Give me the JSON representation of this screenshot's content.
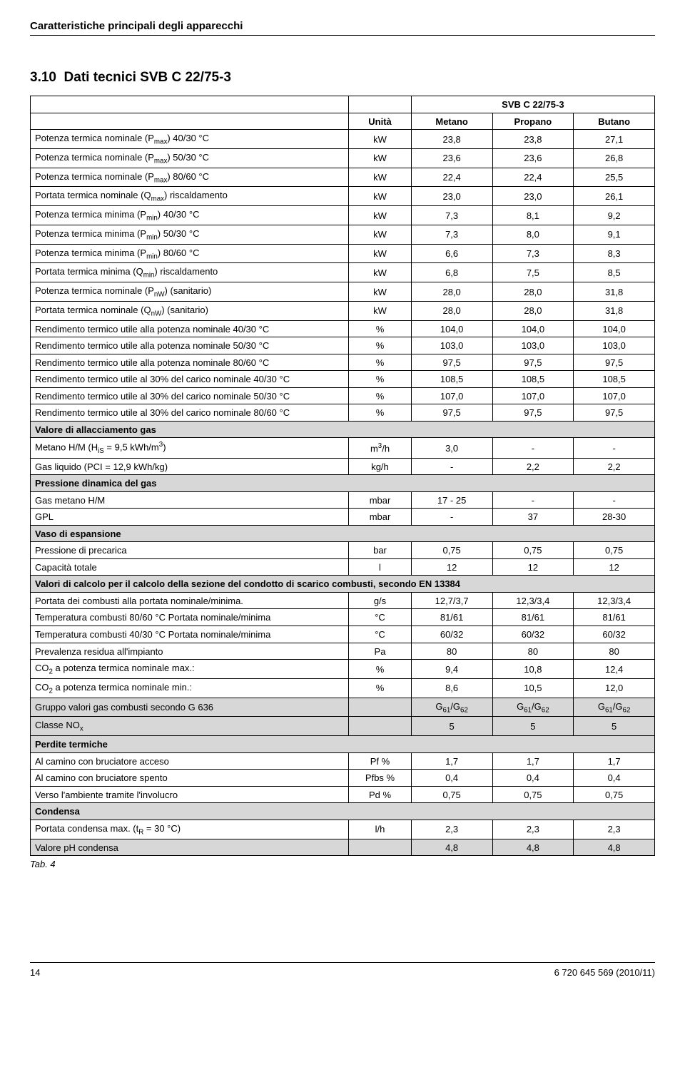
{
  "header": {
    "title": "Caratteristiche principali degli apparecchi"
  },
  "section": {
    "number": "3.10",
    "title": "Dati tecnici SVB C 22/75-3"
  },
  "model": "SVB C 22/75-3",
  "columns": [
    "Unità",
    "Metano",
    "Propano",
    "Butano"
  ],
  "colWidths": [
    "51%",
    "10%",
    "13%",
    "13%",
    "13%"
  ],
  "rows": [
    {
      "t": "r",
      "label": "Potenza termica nominale (P<sub>max</sub>) 40/30 °C",
      "u": "kW",
      "v": [
        "23,8",
        "23,8",
        "27,1"
      ]
    },
    {
      "t": "r",
      "label": "Potenza termica nominale (P<sub>max</sub>) 50/30 °C",
      "u": "kW",
      "v": [
        "23,6",
        "23,6",
        "26,8"
      ]
    },
    {
      "t": "r",
      "label": "Potenza termica nominale (P<sub>max</sub>) 80/60 °C",
      "u": "kW",
      "v": [
        "22,4",
        "22,4",
        "25,5"
      ]
    },
    {
      "t": "r",
      "label": "Portata termica nominale (Q<sub>max</sub>) riscaldamento",
      "u": "kW",
      "v": [
        "23,0",
        "23,0",
        "26,1"
      ]
    },
    {
      "t": "r",
      "label": "Potenza termica minima (P<sub>min</sub>) 40/30 °C",
      "u": "kW",
      "v": [
        "7,3",
        "8,1",
        "9,2"
      ]
    },
    {
      "t": "r",
      "label": "Potenza termica minima (P<sub>min</sub>) 50/30 °C",
      "u": "kW",
      "v": [
        "7,3",
        "8,0",
        "9,1"
      ]
    },
    {
      "t": "r",
      "label": "Potenza termica minima (P<sub>min</sub>) 80/60 °C",
      "u": "kW",
      "v": [
        "6,6",
        "7,3",
        "8,3"
      ]
    },
    {
      "t": "r",
      "label": "Portata termica minima (Q<sub>min</sub>) riscaldamento",
      "u": "kW",
      "v": [
        "6,8",
        "7,5",
        "8,5"
      ]
    },
    {
      "t": "r",
      "label": "Potenza termica nominale (P<sub>nW</sub>) (sanitario)",
      "u": "kW",
      "v": [
        "28,0",
        "28,0",
        "31,8"
      ]
    },
    {
      "t": "r",
      "label": "Portata termica nominale (Q<sub>nW</sub>) (sanitario)",
      "u": "kW",
      "v": [
        "28,0",
        "28,0",
        "31,8"
      ]
    },
    {
      "t": "r",
      "label": "Rendimento termico utile alla potenza nominale 40/30 °C",
      "u": "%",
      "v": [
        "104,0",
        "104,0",
        "104,0"
      ]
    },
    {
      "t": "r",
      "label": "Rendimento termico utile alla potenza nominale 50/30 °C",
      "u": "%",
      "v": [
        "103,0",
        "103,0",
        "103,0"
      ]
    },
    {
      "t": "r",
      "label": "Rendimento termico utile alla potenza nominale 80/60 °C",
      "u": "%",
      "v": [
        "97,5",
        "97,5",
        "97,5"
      ]
    },
    {
      "t": "r",
      "label": "Rendimento termico utile al 30% del carico nominale 40/30 °C",
      "u": "%",
      "v": [
        "108,5",
        "108,5",
        "108,5"
      ]
    },
    {
      "t": "r",
      "label": "Rendimento termico utile al 30% del carico nominale 50/30 °C",
      "u": "%",
      "v": [
        "107,0",
        "107,0",
        "107,0"
      ]
    },
    {
      "t": "r",
      "label": "Rendimento termico utile al 30% del carico nominale 80/60 °C",
      "u": "%",
      "v": [
        "97,5",
        "97,5",
        "97,5"
      ]
    },
    {
      "t": "s",
      "label": "Valore di allacciamento gas"
    },
    {
      "t": "r",
      "label": "Metano H/M (H<sub>iS</sub> = 9,5 kWh/m<sup>3</sup>)",
      "u": "m<sup>3</sup>/h",
      "v": [
        "3,0",
        "-",
        "-"
      ]
    },
    {
      "t": "r",
      "label": "Gas liquido (PCI = 12,9 kWh/kg)",
      "u": "kg/h",
      "v": [
        "-",
        "2,2",
        "2,2"
      ]
    },
    {
      "t": "s",
      "label": "Pressione dinamica del gas"
    },
    {
      "t": "r",
      "label": "Gas metano H/M",
      "u": "mbar",
      "v": [
        "17 - 25",
        "-",
        "-"
      ]
    },
    {
      "t": "r",
      "label": "GPL",
      "u": "mbar",
      "v": [
        "-",
        "37",
        "28-30"
      ]
    },
    {
      "t": "s",
      "label": "Vaso di espansione"
    },
    {
      "t": "r",
      "label": "Pressione di precarica",
      "u": "bar",
      "v": [
        "0,75",
        "0,75",
        "0,75"
      ]
    },
    {
      "t": "r",
      "label": "Capacità totale",
      "u": "l",
      "v": [
        "12",
        "12",
        "12"
      ]
    },
    {
      "t": "s",
      "label": "Valori di calcolo per il calcolo della sezione del condotto di scarico combusti, secondo EN 13384"
    },
    {
      "t": "r",
      "label": "Portata dei combusti alla portata nominale/minima.",
      "u": "g/s",
      "v": [
        "12,7/3,7",
        "12,3/3,4",
        "12,3/3,4"
      ]
    },
    {
      "t": "r",
      "label": "Temperatura combusti 80/60 °C Portata nominale/minima",
      "u": "°C",
      "v": [
        "81/61",
        "81/61",
        "81/61"
      ]
    },
    {
      "t": "r",
      "label": "Temperatura combusti 40/30 °C Portata nominale/minima",
      "u": "°C",
      "v": [
        "60/32",
        "60/32",
        "60/32"
      ]
    },
    {
      "t": "r",
      "label": "Prevalenza residua all'impianto",
      "u": "Pa",
      "v": [
        "80",
        "80",
        "80"
      ]
    },
    {
      "t": "r",
      "label": "CO<sub>2</sub> a potenza termica nominale max.:",
      "u": "%",
      "v": [
        "9,4",
        "10,8",
        "12,4"
      ]
    },
    {
      "t": "r",
      "label": "CO<sub>2</sub> a potenza termica nominale min.:",
      "u": "%",
      "v": [
        "8,6",
        "10,5",
        "12,0"
      ]
    },
    {
      "t": "rs",
      "label": "Gruppo valori gas combusti secondo G 636",
      "u": "",
      "v": [
        "G<sub>61</sub>/G<sub>62</sub>",
        "G<sub>61</sub>/G<sub>62</sub>",
        "G<sub>61</sub>/G<sub>62</sub>"
      ]
    },
    {
      "t": "rs",
      "label": "Classe NO<sub>x</sub>",
      "u": "",
      "v": [
        "5",
        "5",
        "5"
      ]
    },
    {
      "t": "s",
      "label": "Perdite termiche"
    },
    {
      "t": "r",
      "label": "Al camino con bruciatore acceso",
      "u": "Pf %",
      "v": [
        "1,7",
        "1,7",
        "1,7"
      ]
    },
    {
      "t": "r",
      "label": "Al camino con bruciatore spento",
      "u": "Pfbs %",
      "v": [
        "0,4",
        "0,4",
        "0,4"
      ]
    },
    {
      "t": "r",
      "label": "Verso l'ambiente tramite l'involucro",
      "u": "Pd %",
      "v": [
        "0,75",
        "0,75",
        "0,75"
      ]
    },
    {
      "t": "s",
      "label": "Condensa"
    },
    {
      "t": "r",
      "label": "Portata condensa max. (t<sub>R</sub> = 30 °C)",
      "u": "l/h",
      "v": [
        "2,3",
        "2,3",
        "2,3"
      ]
    },
    {
      "t": "rs",
      "label": "Valore pH condensa",
      "u": "",
      "v": [
        "4,8",
        "4,8",
        "4,8"
      ]
    }
  ],
  "caption": "Tab. 4",
  "footer": {
    "page": "14",
    "doc": "6 720 645 569 (2010/11)"
  }
}
